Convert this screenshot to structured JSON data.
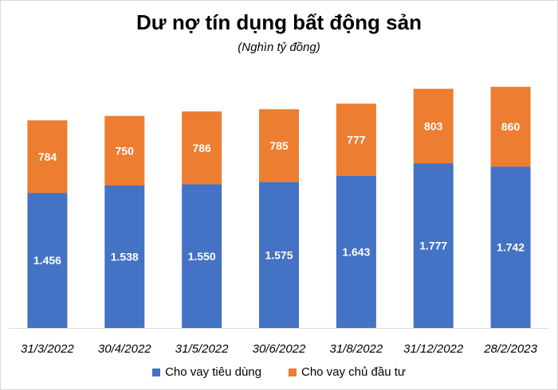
{
  "chart_data": {
    "type": "bar",
    "stacked": true,
    "title": "Dư nợ tín dụng bất động sản",
    "subtitle": "(Nghìn tỷ đồng)",
    "categories": [
      "31/3/2022",
      "30/4/2022",
      "31/5/2022",
      "30/6/2022",
      "31/8/2022",
      "31/12/2022",
      "28/2/2023"
    ],
    "series": [
      {
        "name": "Cho vay tiêu dùng",
        "color": "#4472C4",
        "values": [
          1456,
          1538,
          1550,
          1575,
          1643,
          1777,
          1742
        ],
        "labels": [
          "1.456",
          "1.538",
          "1.550",
          "1.575",
          "1.643",
          "1.777",
          "1.742"
        ]
      },
      {
        "name": "Cho vay chủ đầu tư",
        "color": "#ED7D31",
        "values": [
          784,
          750,
          786,
          785,
          777,
          803,
          860
        ],
        "labels": [
          "784",
          "750",
          "786",
          "785",
          "777",
          "803",
          "860"
        ]
      }
    ],
    "ylim": [
      0,
      2800
    ],
    "grid": false,
    "legend_position": "bottom"
  }
}
